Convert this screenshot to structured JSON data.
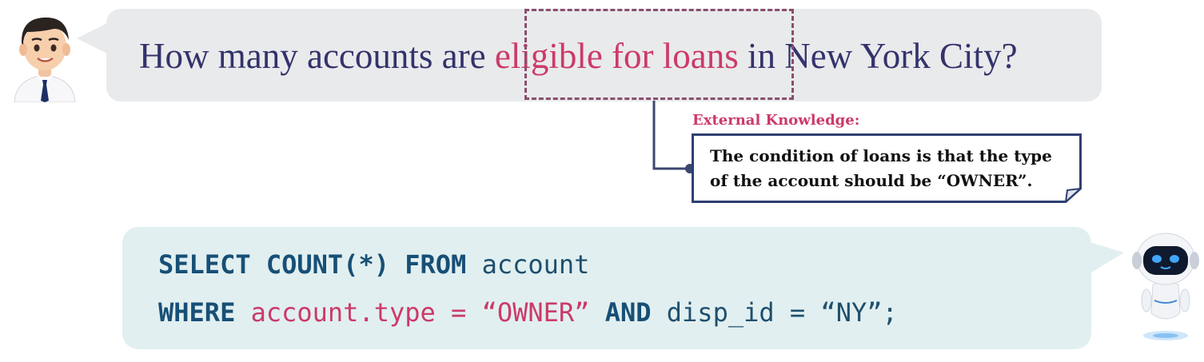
{
  "question": {
    "before": "How many accounts are ",
    "highlight": "eligible for loans",
    "after": " in New York City?"
  },
  "external_knowledge": {
    "label": "External Knowledge:",
    "text": "The condition of loans is that the type of the account should be “OWNER”."
  },
  "sql": {
    "line1": [
      {
        "text": "SELECT COUNT(*) FROM",
        "kind": "kw"
      },
      {
        "text": " account",
        "kind": "id"
      }
    ],
    "line2": [
      {
        "text": "WHERE",
        "kind": "kw"
      },
      {
        "text": " account.type = “OWNER”",
        "kind": "str"
      },
      {
        "text": " AND",
        "kind": "kw"
      },
      {
        "text": " disp_id = “NY”;",
        "kind": "id"
      }
    ]
  },
  "colors": {
    "question_text": "#33336b",
    "highlight_text": "#cc3a68",
    "question_bubble": "#e9eaec",
    "sql_bubble": "#e1eff0",
    "sql_keyword": "#174f76",
    "knowledge_label": "#cc3a68",
    "card_border": "#2f3f73"
  }
}
